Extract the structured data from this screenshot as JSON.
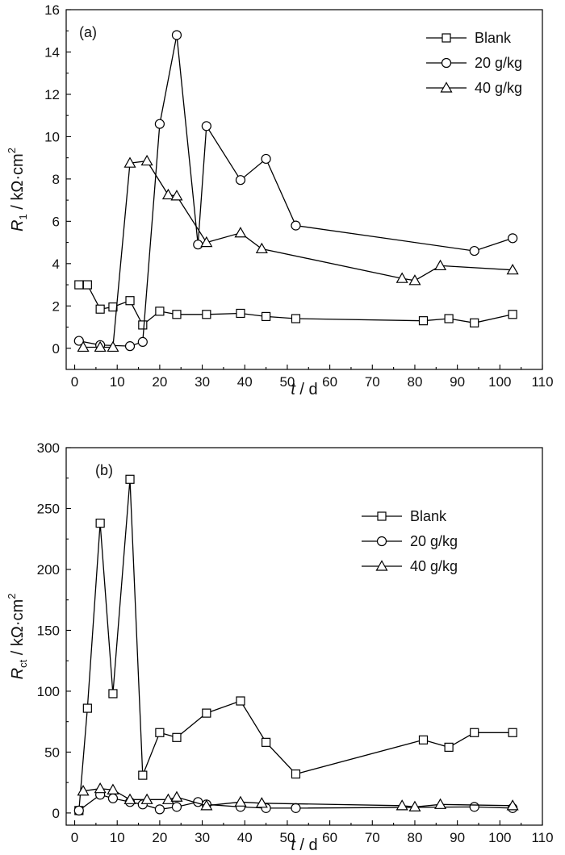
{
  "chart_data": [
    {
      "type": "line",
      "panel": "(a)",
      "xlabel_italic": "t",
      "xlabel_unit": " / d",
      "ylabel_main": "R",
      "ylabel_sub": "1",
      "ylabel_unit": " / kΩ·cm",
      "ylabel_sup": "2",
      "xlim": [
        -2,
        110
      ],
      "ylim": [
        -1,
        16
      ],
      "xticks": [
        0,
        10,
        20,
        30,
        40,
        50,
        60,
        70,
        80,
        90,
        100,
        110
      ],
      "yticks": [
        0,
        2,
        4,
        6,
        8,
        10,
        12,
        14,
        16
      ],
      "legend_position": "top-right",
      "series": [
        {
          "name": "Blank",
          "marker": "square",
          "x": [
            1,
            3,
            6,
            9,
            13,
            16,
            20,
            24,
            31,
            39,
            45,
            52,
            82,
            88,
            94,
            103
          ],
          "y": [
            3.0,
            3.0,
            1.85,
            1.95,
            2.25,
            1.1,
            1.75,
            1.6,
            1.6,
            1.65,
            1.5,
            1.4,
            1.3,
            1.4,
            1.2,
            1.6
          ]
        },
        {
          "name": "20 g/kg",
          "marker": "circle",
          "x": [
            1,
            6,
            13,
            16,
            20,
            24,
            29,
            31,
            39,
            45,
            52,
            94,
            103
          ],
          "y": [
            0.35,
            0.15,
            0.1,
            0.3,
            10.6,
            14.8,
            4.9,
            10.5,
            7.95,
            8.95,
            5.8,
            4.6,
            5.2
          ]
        },
        {
          "name": "40 g/kg",
          "marker": "triangle",
          "x": [
            2,
            6,
            9,
            13,
            17,
            22,
            24,
            31,
            39,
            44,
            77,
            80,
            86,
            103
          ],
          "y": [
            0.05,
            0.05,
            0.05,
            8.75,
            8.85,
            7.25,
            7.2,
            5.0,
            5.45,
            4.7,
            3.3,
            3.2,
            3.9,
            3.7
          ]
        }
      ]
    },
    {
      "type": "line",
      "panel": "(b)",
      "xlabel_italic": "t",
      "xlabel_unit": " / d",
      "ylabel_main": "R",
      "ylabel_sub": "ct",
      "ylabel_unit": " / kΩ·cm",
      "ylabel_sup": "2",
      "xlim": [
        -2,
        110
      ],
      "ylim": [
        -10,
        300
      ],
      "xticks": [
        0,
        10,
        20,
        30,
        40,
        50,
        60,
        70,
        80,
        90,
        100,
        110
      ],
      "yticks": [
        0,
        50,
        100,
        150,
        200,
        250,
        300
      ],
      "legend_position": "center-right",
      "series": [
        {
          "name": "Blank",
          "marker": "square",
          "x": [
            1,
            3,
            6,
            9,
            13,
            16,
            20,
            24,
            31,
            39,
            45,
            52,
            82,
            88,
            94,
            103
          ],
          "y": [
            2,
            86,
            238,
            98,
            274,
            31,
            66,
            62,
            82,
            92,
            58,
            32,
            60,
            54,
            66,
            66
          ]
        },
        {
          "name": "20 g/kg",
          "marker": "circle",
          "x": [
            1,
            6,
            9,
            13,
            16,
            20,
            24,
            29,
            31,
            39,
            45,
            52,
            94,
            103
          ],
          "y": [
            2,
            15,
            12,
            9,
            7,
            3,
            5,
            9,
            7,
            5,
            4,
            4,
            5,
            4
          ]
        },
        {
          "name": "40 g/kg",
          "marker": "triangle",
          "x": [
            2,
            6,
            9,
            13,
            17,
            22,
            24,
            31,
            39,
            44,
            77,
            80,
            86,
            103
          ],
          "y": [
            18,
            20,
            19,
            11,
            11,
            11,
            13,
            6,
            9,
            8,
            6,
            5,
            7,
            6
          ]
        }
      ]
    }
  ]
}
